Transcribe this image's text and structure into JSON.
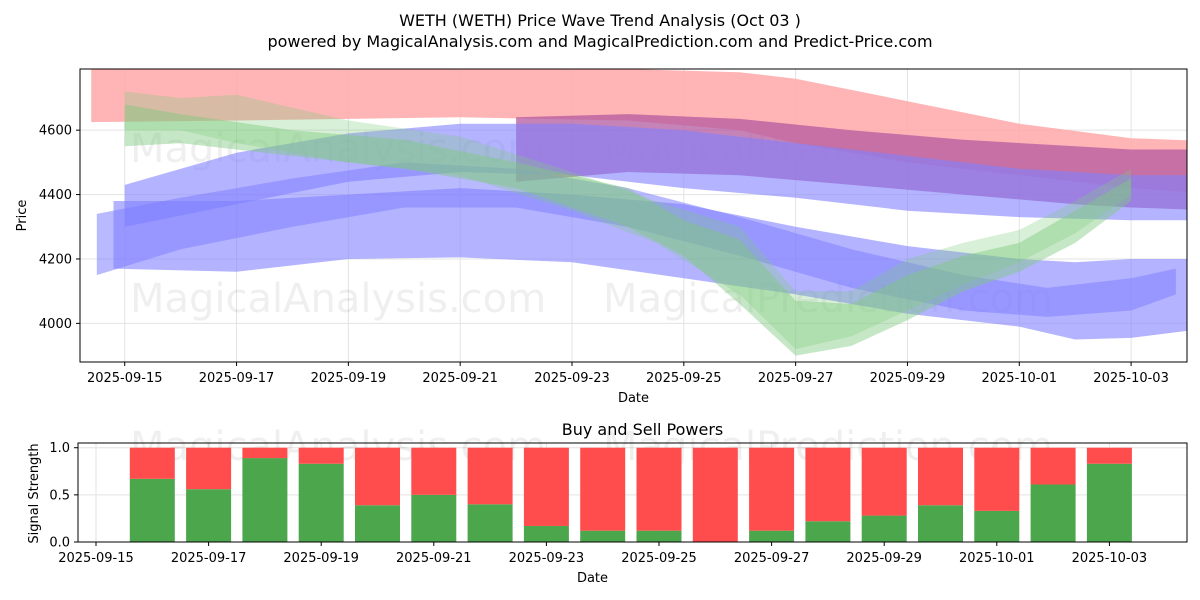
{
  "title_line1": "WETH (WETH) Price Wave Trend Analysis (Oct 03 )",
  "title_line2": "powered by MagicalAnalysis.com and MagicalPrediction.com and Predict-Price.com",
  "watermarks": [
    "MagicalAnalysis.com",
    "MagicalPrediction.com"
  ],
  "colors": {
    "sell": "#ff4d4d",
    "buy": "#4ca64c",
    "red_band": "#ffa8a8",
    "blue_band": "#8080ff",
    "green_band": "#7fc97f",
    "purple_band": "#b35aa0"
  },
  "chart_data": [
    {
      "type": "area",
      "title": "",
      "xlabel": "Date",
      "ylabel": "Price",
      "x_ticks": [
        "2025-09-15",
        "2025-09-17",
        "2025-09-19",
        "2025-09-21",
        "2025-09-23",
        "2025-09-25",
        "2025-09-27",
        "2025-09-29",
        "2025-10-01",
        "2025-10-03"
      ],
      "y_ticks": [
        "4000",
        "4200",
        "4400",
        "4600"
      ],
      "ylim": [
        3880,
        4790
      ],
      "xlim_days": [
        -0.8,
        19.0
      ],
      "x_origin": "2025-09-15",
      "bands": [
        {
          "name": "red band",
          "color": "red",
          "opacity": 0.85,
          "x": [
            -0.6,
            -0.6,
            2,
            6,
            9,
            11,
            12,
            14,
            16,
            18,
            19.6
          ],
          "upper": [
            4790,
            4790,
            4790,
            4790,
            4790,
            4780,
            4760,
            4690,
            4620,
            4575,
            4565
          ],
          "lower": [
            4625,
            4625,
            4630,
            4640,
            4630,
            4600,
            4560,
            4500,
            4460,
            4420,
            4400
          ]
        },
        {
          "name": "purple band",
          "color": "purple",
          "opacity": 0.75,
          "x": [
            7,
            9,
            11,
            13,
            15,
            17,
            18,
            19.6
          ],
          "upper": [
            4640,
            4650,
            4635,
            4600,
            4570,
            4550,
            4540,
            4540
          ],
          "lower": [
            4440,
            4470,
            4460,
            4430,
            4400,
            4370,
            4360,
            4350
          ]
        },
        {
          "name": "blue band upper",
          "color": "blue",
          "opacity": 0.6,
          "x": [
            0,
            2,
            4,
            6,
            8,
            10,
            12,
            14,
            16,
            18,
            19.6
          ],
          "upper": [
            4430,
            4530,
            4590,
            4620,
            4620,
            4600,
            4560,
            4520,
            4480,
            4460,
            4460
          ],
          "lower": [
            4300,
            4370,
            4440,
            4470,
            4460,
            4420,
            4390,
            4350,
            4330,
            4320,
            4320
          ]
        },
        {
          "name": "blue band lower",
          "color": "blue",
          "opacity": 0.6,
          "x": [
            -0.2,
            2,
            4,
            6,
            8,
            10,
            12,
            14,
            16,
            17,
            18,
            19.6
          ],
          "upper": [
            4380,
            4380,
            4400,
            4420,
            4400,
            4370,
            4300,
            4240,
            4200,
            4190,
            4200,
            4200
          ],
          "lower": [
            4170,
            4160,
            4200,
            4205,
            4190,
            4140,
            4090,
            4030,
            3990,
            3950,
            3955,
            3990
          ]
        },
        {
          "name": "blue thick wave",
          "color": "blue",
          "opacity": 0.55,
          "x": [
            -0.5,
            1,
            3,
            5,
            7,
            9,
            11,
            13,
            15,
            16.5,
            18,
            18.8
          ],
          "upper": [
            4340,
            4390,
            4450,
            4500,
            4480,
            4420,
            4330,
            4230,
            4150,
            4110,
            4140,
            4170
          ],
          "lower": [
            4150,
            4230,
            4300,
            4360,
            4360,
            4300,
            4210,
            4110,
            4040,
            4020,
            4040,
            4090
          ]
        },
        {
          "name": "green wave",
          "color": "green",
          "opacity": 0.45,
          "x": [
            0,
            1,
            3,
            5,
            7,
            9,
            10,
            11,
            12,
            13,
            14,
            15,
            16,
            17,
            18
          ],
          "upper": [
            4680,
            4650,
            4600,
            4570,
            4500,
            4420,
            4320,
            4260,
            4070,
            4060,
            4150,
            4210,
            4250,
            4350,
            4450
          ],
          "lower": [
            4550,
            4560,
            4520,
            4480,
            4420,
            4300,
            4210,
            4060,
            3900,
            3930,
            4010,
            4100,
            4160,
            4250,
            4380
          ]
        },
        {
          "name": "green wave shadow",
          "color": "green",
          "opacity": 0.3,
          "x": [
            0,
            1,
            2,
            4,
            6,
            8,
            9.5,
            11,
            12,
            13,
            14,
            15,
            16,
            17,
            18
          ],
          "upper": [
            4720,
            4700,
            4710,
            4630,
            4580,
            4470,
            4380,
            4300,
            4100,
            4100,
            4200,
            4250,
            4290,
            4380,
            4480
          ],
          "lower": [
            4600,
            4600,
            4560,
            4500,
            4460,
            4350,
            4250,
            4090,
            3920,
            3960,
            4040,
            4120,
            4190,
            4280,
            4400
          ]
        }
      ]
    },
    {
      "type": "bar",
      "title": "Buy and Sell Powers",
      "xlabel": "Date",
      "ylabel": "Signal Strength",
      "ylim": [
        0,
        1.05
      ],
      "y_ticks": [
        "0.0",
        "0.5",
        "1.0"
      ],
      "x_ticks": [
        "2025-09-15",
        "2025-09-17",
        "2025-09-19",
        "2025-09-21",
        "2025-09-23",
        "2025-09-25",
        "2025-09-27",
        "2025-09-29",
        "2025-10-01",
        "2025-10-03"
      ],
      "categories": [
        "2025-09-16",
        "2025-09-17",
        "2025-09-18",
        "2025-09-19",
        "2025-09-20",
        "2025-09-21",
        "2025-09-22",
        "2025-09-23",
        "2025-09-24",
        "2025-09-25",
        "2025-09-26",
        "2025-09-27",
        "2025-09-28",
        "2025-09-29",
        "2025-09-30",
        "2025-10-01",
        "2025-10-02",
        "2025-10-03"
      ],
      "series": [
        {
          "name": "Buy",
          "color": "#4ca64c",
          "values": [
            0.67,
            0.56,
            0.89,
            0.83,
            0.39,
            0.5,
            0.4,
            0.17,
            0.12,
            0.12,
            0.0,
            0.12,
            0.22,
            0.28,
            0.39,
            0.33,
            0.61,
            0.83
          ]
        },
        {
          "name": "Sell",
          "color": "#ff4d4d",
          "values": [
            0.33,
            0.44,
            0.11,
            0.17,
            0.61,
            0.5,
            0.6,
            0.83,
            0.88,
            0.88,
            1.0,
            0.88,
            0.78,
            0.72,
            0.61,
            0.67,
            0.39,
            0.17
          ]
        }
      ]
    }
  ]
}
